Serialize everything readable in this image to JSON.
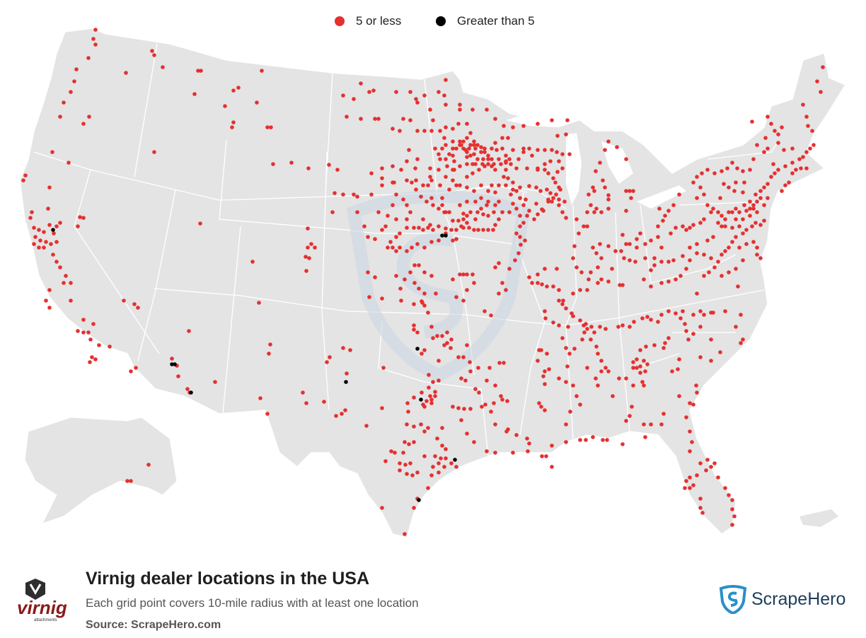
{
  "legend": {
    "items": [
      {
        "label": "5 or less",
        "color": "#e53030"
      },
      {
        "label": "Greater than 5",
        "color": "#000000"
      }
    ]
  },
  "map": {
    "land_color": "#e4e4e4",
    "border_color": "#ffffff",
    "watermark_color": "#c9d6e3"
  },
  "footer": {
    "title": "Virnig dealer locations in the USA",
    "subtitle": "Each grid point covers 10-mile radius with at least one location",
    "source_label": "Source: ScrapeHero.com",
    "logo_text": "virnig",
    "logo_subtext": "attachments",
    "brand": "ScrapeHero",
    "brand_color": "#2a8fc9"
  }
}
